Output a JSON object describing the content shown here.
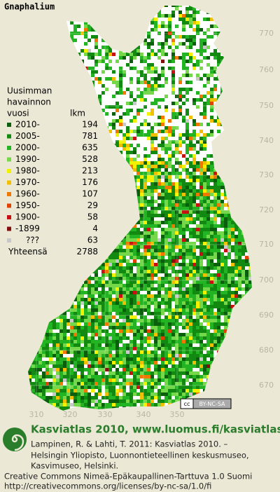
{
  "title": "Gnaphalium",
  "legend": {
    "heading": [
      "Uusimman",
      "havainnon",
      "vuosi"
    ],
    "count_heading": "lkm",
    "rows": [
      {
        "label": "2010-",
        "count": 194,
        "color": "#0b5e0b"
      },
      {
        "label": "2005-",
        "count": 781,
        "color": "#128a12"
      },
      {
        "label": "2000-",
        "count": 635,
        "color": "#22b422"
      },
      {
        "label": "1990-",
        "count": 528,
        "color": "#74d84a"
      },
      {
        "label": "1980-",
        "count": 213,
        "color": "#f2f200"
      },
      {
        "label": "1970-",
        "count": 176,
        "color": "#f0c000"
      },
      {
        "label": "1960-",
        "count": 107,
        "color": "#f07800"
      },
      {
        "label": "1950-",
        "count": 29,
        "color": "#e04000"
      },
      {
        "label": "1900-",
        "count": 58,
        "color": "#c81010"
      },
      {
        "label": "-1899",
        "count": 4,
        "color": "#801010"
      },
      {
        "label": "???",
        "count": 63,
        "color": "#c8c8c8"
      }
    ],
    "total_label": "Yhteensä",
    "total": 2788
  },
  "northing_labels": [
    770,
    760,
    750,
    740,
    730,
    720,
    710,
    700,
    690,
    680,
    670
  ],
  "easting_labels": [
    310,
    320,
    330,
    340,
    350
  ],
  "license_badge": {
    "cc": "cc",
    "text": "BY-NC-SA"
  },
  "footer": {
    "site": "Kasviatlas 2010, www.luomus.fi/kasviatlas",
    "citation": [
      "Lampinen, R. & Lahti, T. 2011: Kasviatlas 2010. –",
      "Helsingin Yliopisto, Luonnontieteellinen keskusmuseo,",
      "Kasvimuseo, Helsinki."
    ],
    "license": [
      "Creative Commons Nimeä-Epäkaupallinen-Tarttuva 1.0 Suomi",
      "http://creativecommons.org/licenses/by-nc-sa/1.0/fi"
    ]
  }
}
